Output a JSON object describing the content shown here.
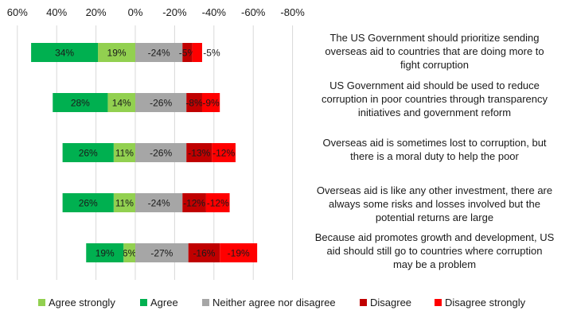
{
  "chart_data": {
    "type": "bar",
    "orientation": "horizontal",
    "stacked": "diverging",
    "title": "",
    "xlabel": "",
    "ylabel": "",
    "xlim": [
      60,
      -80
    ],
    "x_ticks": [
      60,
      40,
      20,
      0,
      -20,
      -40,
      -60,
      -80
    ],
    "x_tick_labels": [
      "60%",
      "40%",
      "20%",
      "0%",
      "-20%",
      "-40%",
      "-60%",
      "-80%"
    ],
    "grid": true,
    "legend_position": "bottom",
    "categories": [
      "The US Government  should prioritize sending overseas aid to countries that are doing more to fight corruption",
      "US Government aid should be used to reduce corruption in poor countries through transparency initiatives and government reform",
      "Overseas aid is sometimes lost to corruption, but there is a moral duty to help the poor",
      "Overseas aid is like any other investment, there are always some risks and losses involved but the potential returns are large",
      "Because aid promotes growth and development, US aid should still go to countries where corruption may be a problem"
    ],
    "category_lines": [
      [
        "The US Government  should prioritize sending",
        "overseas aid to countries that are doing more to",
        "fight corruption"
      ],
      [
        "US Government aid should be used to reduce",
        "corruption in poor countries through transparency",
        "initiatives and government reform"
      ],
      [
        "Overseas aid is sometimes lost to corruption, but",
        "there is a moral duty to help the poor"
      ],
      [
        "Overseas aid is like any other investment, there are",
        "always some risks and losses involved but the",
        "potential returns are large"
      ],
      [
        "Because aid promotes growth and development, US",
        "aid should still go to countries where corruption",
        "may be a problem"
      ]
    ],
    "series": [
      {
        "name": "Agree strongly",
        "color": "#92d050",
        "values": [
          19,
          14,
          11,
          11,
          6
        ],
        "labels": [
          "19%",
          "14%",
          "11%",
          "11%",
          "6%"
        ]
      },
      {
        "name": "Agree",
        "color": "#00b050",
        "values": [
          34,
          28,
          26,
          26,
          19
        ],
        "labels": [
          "34%",
          "28%",
          "26%",
          "26%",
          "19%"
        ]
      },
      {
        "name": "Neither agree nor disagree",
        "color": "#a6a6a6",
        "values": [
          -24,
          -26,
          -26,
          -24,
          -27
        ],
        "labels": [
          "-24%",
          "-26%",
          "-26%",
          "-24%",
          "-27%"
        ]
      },
      {
        "name": "Disagree",
        "color": "#c00000",
        "values": [
          -5,
          -8,
          -13,
          -12,
          -16
        ],
        "labels": [
          "-5%",
          "-8%",
          "-13%",
          "-12%",
          "-16%"
        ]
      },
      {
        "name": "Disagree strongly",
        "color": "#ff0000",
        "values": [
          -5,
          -9,
          -12,
          -12,
          -19
        ],
        "labels": [
          "-5%",
          "-9%",
          "-12%",
          "-12%",
          "-19%"
        ]
      }
    ]
  }
}
